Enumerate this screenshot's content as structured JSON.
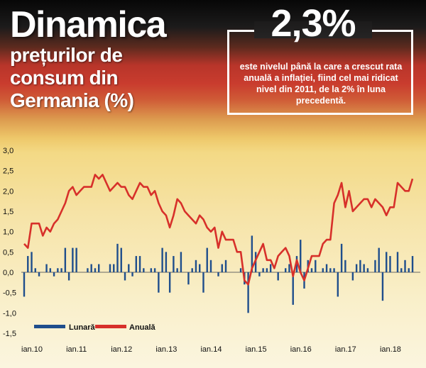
{
  "header": {
    "title_line1": "Dinamica",
    "title_line2": "prețurilor de consum din Germania (%)",
    "highlight_value": "2,3%",
    "highlight_text": "este nivelul până la care a crescut rata anuală a inflației, fiind cel mai ridicat nivel din 2011, de la 2% în luna precedentă."
  },
  "colors": {
    "monthly": "#1f4e8c",
    "annual": "#d7302a",
    "axis_text": "#111111"
  },
  "chart_data": {
    "type": "bar+line",
    "x_tick_labels": [
      "ian.10",
      "ian.11",
      "ian.12",
      "ian.13",
      "ian.14",
      "ian.15",
      "ian.16",
      "ian.17",
      "ian.18"
    ],
    "y_tick_labels": [
      "3,0",
      "2,5",
      "2,0",
      "1,5",
      "1,0",
      "0,5",
      "0,0",
      "-0,5",
      "-1,0",
      "-1,5"
    ],
    "ylim": [
      -1.5,
      3.0
    ],
    "start_month": "ian.10",
    "series": [
      {
        "name": "Lunară",
        "type": "bar",
        "values": [
          -0.6,
          0.4,
          0.5,
          0.1,
          -0.1,
          0.0,
          0.2,
          0.1,
          -0.1,
          0.1,
          0.1,
          0.6,
          -0.2,
          0.6,
          0.6,
          0.0,
          0.0,
          0.1,
          0.2,
          0.1,
          0.2,
          0.0,
          0.0,
          0.2,
          0.2,
          0.7,
          0.6,
          -0.2,
          0.2,
          -0.1,
          0.4,
          0.4,
          0.1,
          0.0,
          0.1,
          0.1,
          -0.5,
          0.6,
          0.5,
          -0.5,
          0.4,
          0.1,
          0.5,
          0.0,
          -0.3,
          0.1,
          0.3,
          0.2,
          -0.5,
          0.6,
          0.3,
          0.0,
          -0.1,
          0.2,
          0.3,
          0.0,
          0.0,
          0.0,
          0.1,
          -0.3,
          -1.0,
          0.9,
          0.5,
          -0.1,
          0.1,
          0.1,
          0.2,
          0.0,
          -0.2,
          0.0,
          0.1,
          0.2,
          -0.8,
          0.4,
          0.8,
          -0.4,
          0.3,
          0.1,
          0.3,
          0.0,
          0.1,
          0.2,
          0.1,
          0.1,
          -0.6,
          0.7,
          0.3,
          0.0,
          -0.2,
          0.2,
          0.3,
          0.2,
          0.1,
          0.0,
          0.3,
          0.6,
          -0.7,
          0.5,
          0.4,
          0.0,
          0.5,
          0.1,
          0.3,
          0.1,
          0.4
        ]
      },
      {
        "name": "Anuală",
        "type": "line",
        "values": [
          0.7,
          0.6,
          1.2,
          1.2,
          1.2,
          0.9,
          1.1,
          1.0,
          1.2,
          1.3,
          1.5,
          1.7,
          2.0,
          2.1,
          1.9,
          2.0,
          2.1,
          2.1,
          2.1,
          2.4,
          2.3,
          2.4,
          2.2,
          2.0,
          2.1,
          2.2,
          2.1,
          2.1,
          1.9,
          1.8,
          2.0,
          2.2,
          2.1,
          2.1,
          1.9,
          2.0,
          1.7,
          1.5,
          1.4,
          1.1,
          1.4,
          1.8,
          1.7,
          1.5,
          1.4,
          1.3,
          1.2,
          1.4,
          1.3,
          1.1,
          1.0,
          1.1,
          0.6,
          1.0,
          0.8,
          0.8,
          0.8,
          0.5,
          0.5,
          -0.2,
          -0.3,
          0.1,
          0.3,
          0.5,
          0.7,
          0.3,
          0.3,
          0.1,
          0.4,
          0.5,
          0.6,
          0.4,
          -0.1,
          0.3,
          0.0,
          -0.2,
          0.1,
          0.4,
          0.4,
          0.4,
          0.7,
          0.8,
          0.8,
          1.7,
          1.9,
          2.2,
          1.6,
          2.0,
          1.5,
          1.6,
          1.7,
          1.8,
          1.8,
          1.6,
          1.8,
          1.7,
          1.6,
          1.4,
          1.6,
          1.6,
          2.2,
          2.1,
          2.0,
          2.0,
          2.3
        ]
      }
    ]
  }
}
